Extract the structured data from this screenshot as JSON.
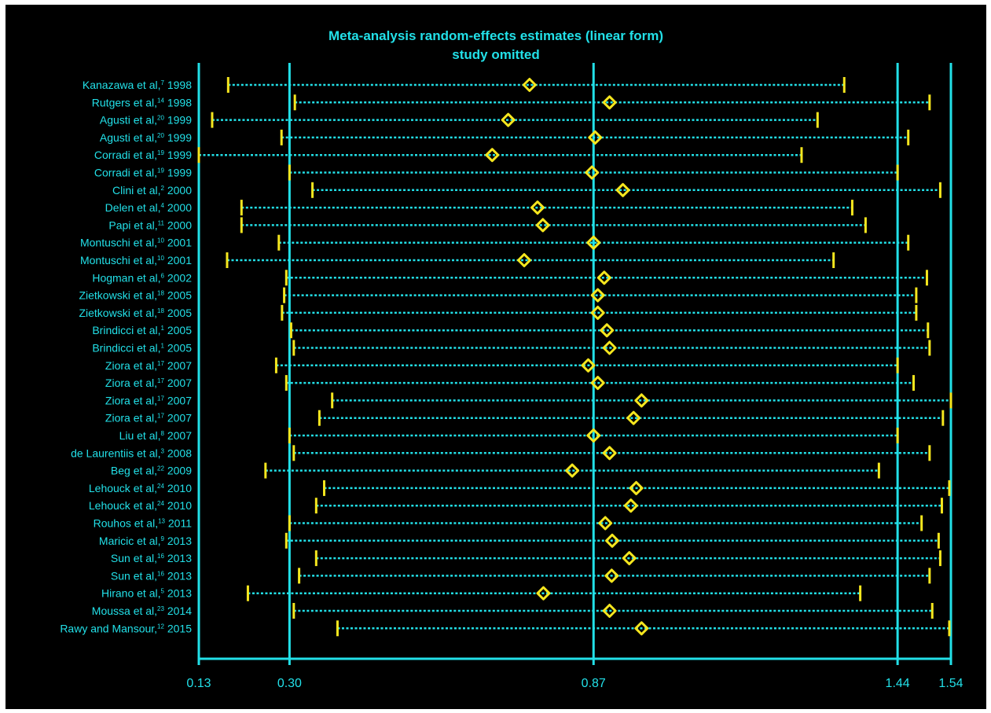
{
  "chart_data": {
    "type": "forest",
    "title": "Meta-analysis random-effects estimates (linear form)",
    "subtitle": "study omitted",
    "xlim": [
      0.13,
      1.54
    ],
    "xticks": [
      "0.13",
      "0.30",
      "0.87",
      "1.44",
      "1.54"
    ],
    "xtick_values": [
      0.13,
      0.3,
      0.87,
      1.44,
      1.54
    ],
    "reference_lines": [
      0.3,
      0.87,
      1.44
    ],
    "colors": {
      "axis": "#22e0e8",
      "marker": "#f5e61e",
      "background": "#000000"
    },
    "studies": [
      {
        "label": "Kanazawa et al,",
        "sup": "7",
        "year": "1998",
        "estimate": 0.75,
        "lower": 0.185,
        "upper": 1.34
      },
      {
        "label": "Rutgers et al,",
        "sup": "14",
        "year": "1998",
        "estimate": 0.9,
        "lower": 0.31,
        "upper": 1.5
      },
      {
        "label": "Agusti et al,",
        "sup": "20",
        "year": "1999",
        "estimate": 0.71,
        "lower": 0.155,
        "upper": 1.29
      },
      {
        "label": "Agusti et al,",
        "sup": "20",
        "year": "1999",
        "estimate": 0.873,
        "lower": 0.285,
        "upper": 1.46
      },
      {
        "label": "Corradi et al,",
        "sup": "19",
        "year": "1999",
        "estimate": 0.68,
        "lower": 0.13,
        "upper": 1.26
      },
      {
        "label": "Corradi et al,",
        "sup": "19",
        "year": "1999",
        "estimate": 0.867,
        "lower": 0.3,
        "upper": 1.44
      },
      {
        "label": "Clini et al,",
        "sup": "2",
        "year": "2000",
        "estimate": 0.925,
        "lower": 0.343,
        "upper": 1.52
      },
      {
        "label": "Delen et al,",
        "sup": "4",
        "year": "2000",
        "estimate": 0.765,
        "lower": 0.21,
        "upper": 1.355
      },
      {
        "label": "Papi et al,",
        "sup": "11",
        "year": "2000",
        "estimate": 0.775,
        "lower": 0.21,
        "upper": 1.38
      },
      {
        "label": "Montuschi et al,",
        "sup": "10",
        "year": "2001",
        "estimate": 0.87,
        "lower": 0.28,
        "upper": 1.46
      },
      {
        "label": "Montuschi et al,",
        "sup": "10",
        "year": "2001",
        "estimate": 0.74,
        "lower": 0.183,
        "upper": 1.32
      },
      {
        "label": "Hogman et al,",
        "sup": "6",
        "year": "2002",
        "estimate": 0.89,
        "lower": 0.294,
        "upper": 1.495
      },
      {
        "label": "Zietkowski et al,",
        "sup": "18",
        "year": "2005",
        "estimate": 0.878,
        "lower": 0.29,
        "upper": 1.475
      },
      {
        "label": "Zietkowski et al,",
        "sup": "18",
        "year": "2005",
        "estimate": 0.878,
        "lower": 0.286,
        "upper": 1.475
      },
      {
        "label": "Brindicci et al,",
        "sup": "1",
        "year": "2005",
        "estimate": 0.895,
        "lower": 0.303,
        "upper": 1.497
      },
      {
        "label": "Brindicci et al,",
        "sup": "1",
        "year": "2005",
        "estimate": 0.9,
        "lower": 0.308,
        "upper": 1.5
      },
      {
        "label": "Ziora et al,",
        "sup": "17",
        "year": "2007",
        "estimate": 0.86,
        "lower": 0.275,
        "upper": 1.44
      },
      {
        "label": "Ziora et al,",
        "sup": "17",
        "year": "2007",
        "estimate": 0.878,
        "lower": 0.294,
        "upper": 1.47
      },
      {
        "label": "Ziora et al,",
        "sup": "17",
        "year": "2007",
        "estimate": 0.96,
        "lower": 0.38,
        "upper": 1.54
      },
      {
        "label": "Ziora et al,",
        "sup": "17",
        "year": "2007",
        "estimate": 0.945,
        "lower": 0.356,
        "upper": 1.525
      },
      {
        "label": "Liu et al,",
        "sup": "8",
        "year": "2007",
        "estimate": 0.87,
        "lower": 0.3,
        "upper": 1.44
      },
      {
        "label": "de Laurentiis et al,",
        "sup": "3",
        "year": "2008",
        "estimate": 0.9,
        "lower": 0.308,
        "upper": 1.5
      },
      {
        "label": "Beg et al,",
        "sup": "22",
        "year": "2009",
        "estimate": 0.83,
        "lower": 0.255,
        "upper": 1.405
      },
      {
        "label": "Lehouck et al,",
        "sup": "24",
        "year": "2010",
        "estimate": 0.95,
        "lower": 0.365,
        "upper": 1.537
      },
      {
        "label": "Lehouck et al,",
        "sup": "24",
        "year": "2010",
        "estimate": 0.94,
        "lower": 0.35,
        "upper": 1.523
      },
      {
        "label": "Rouhos et al,",
        "sup": "13",
        "year": "2011",
        "estimate": 0.892,
        "lower": 0.3,
        "upper": 1.485
      },
      {
        "label": "Maricic et al,",
        "sup": "9",
        "year": "2013",
        "estimate": 0.905,
        "lower": 0.294,
        "upper": 1.517
      },
      {
        "label": "Sun et al,",
        "sup": "16",
        "year": "2013",
        "estimate": 0.937,
        "lower": 0.35,
        "upper": 1.52
      },
      {
        "label": "Sun et al,",
        "sup": "16",
        "year": "2013",
        "estimate": 0.904,
        "lower": 0.318,
        "upper": 1.5
      },
      {
        "label": "Hirano et al,",
        "sup": "5",
        "year": "2013",
        "estimate": 0.776,
        "lower": 0.222,
        "upper": 1.37
      },
      {
        "label": "Moussa et al,",
        "sup": "23",
        "year": "2014",
        "estimate": 0.9,
        "lower": 0.308,
        "upper": 1.505
      },
      {
        "label": "Rawy and Mansour,",
        "sup": "12",
        "year": "2015",
        "estimate": 0.96,
        "lower": 0.39,
        "upper": 1.537
      }
    ]
  }
}
